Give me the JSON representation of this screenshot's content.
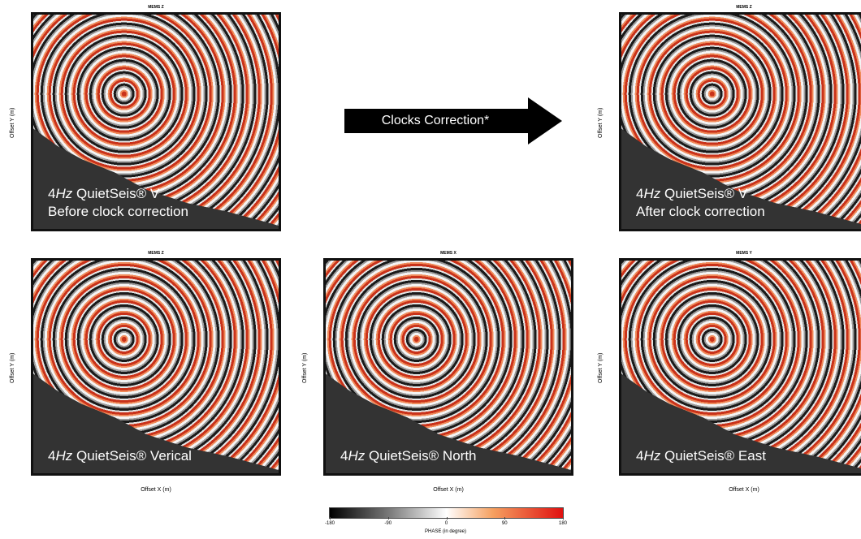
{
  "panels": [
    {
      "title": "MEMS Z",
      "y_label": "Offset Y (m)",
      "caption": {
        "lead": "4",
        "unit": "Hz",
        "rest": " QuietSeis® V",
        "line2": "Before clock correction"
      }
    },
    {
      "title": "MEMS Z",
      "y_label": "Offset Y (m)",
      "caption": {
        "lead": "4",
        "unit": "Hz",
        "rest": " QuietSeis® V",
        "line2": "After clock correction"
      }
    },
    {
      "title": "MEMS Z",
      "y_label": "Offset Y (m)",
      "x_label": "Offset X (m)",
      "caption": {
        "lead": "4",
        "unit": "Hz",
        "rest": " QuietSeis® Verical"
      }
    },
    {
      "title": "MEMS X",
      "y_label": "Offset Y (m)",
      "x_label": "Offset X (m)",
      "caption": {
        "lead": "4",
        "unit": "Hz",
        "rest": " QuietSeis® North"
      }
    },
    {
      "title": "MEMS Y",
      "y_label": "Offset Y (m)",
      "x_label": "Offset X (m)",
      "caption": {
        "lead": "4",
        "unit": "Hz",
        "rest": " QuietSeis® East"
      }
    }
  ],
  "arrow": {
    "label": "Clocks Correction*"
  },
  "colorbar": {
    "label": "PHASE (in degree)",
    "range": [
      -180,
      180
    ],
    "ticks": [
      -180,
      -90,
      0,
      90,
      180
    ]
  }
}
